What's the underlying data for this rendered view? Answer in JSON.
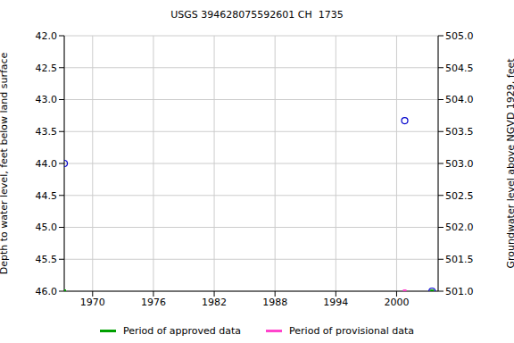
{
  "chart_data": {
    "type": "scatter",
    "title": "USGS 394628075592601 CH  1735",
    "y_label": "Depth to water level, feet below land surface",
    "y2_label": "Groundwater level above NGVD 1929, feet",
    "xlim": [
      1967.2,
      2004.1
    ],
    "xticks": [
      1970,
      1976,
      1982,
      1988,
      1994,
      2000
    ],
    "ylim": [
      46,
      42
    ],
    "yticks": [
      {
        "value": 42,
        "label": "42.0"
      },
      {
        "value": 42.5,
        "label": "42.5"
      },
      {
        "value": 43,
        "label": "43.0"
      },
      {
        "value": 43.5,
        "label": "43.5"
      },
      {
        "value": 44,
        "label": "44.0"
      },
      {
        "value": 44.5,
        "label": "44.5"
      },
      {
        "value": 45,
        "label": "45.0"
      },
      {
        "value": 45.5,
        "label": "45.5"
      },
      {
        "value": 46,
        "label": "46.0"
      }
    ],
    "y2lim": [
      501,
      505
    ],
    "y2ticks": [
      {
        "value": 501,
        "label": "501.0"
      },
      {
        "value": 501.5,
        "label": "501.5"
      },
      {
        "value": 502,
        "label": "502.0"
      },
      {
        "value": 502.5,
        "label": "502.5"
      },
      {
        "value": 503,
        "label": "503.0"
      },
      {
        "value": 503.5,
        "label": "503.5"
      },
      {
        "value": 504,
        "label": "504.0"
      },
      {
        "value": 504.5,
        "label": "504.5"
      },
      {
        "value": 505,
        "label": "505.0"
      }
    ],
    "grid": true,
    "legend": "bottom",
    "series": [
      {
        "color": "#0000cc",
        "marker": "circle-open",
        "x": [
          1967.2,
          2000.8,
          2003.5
        ],
        "values": [
          44.0,
          43.33,
          46.0
        ]
      },
      {
        "name": "Period of approved data",
        "color": "#00a000",
        "marker": "square",
        "x": [
          1967.2,
          2003.5
        ],
        "values": [
          46,
          46
        ]
      },
      {
        "name": "Period of provisional data",
        "color": "#ff44cc",
        "marker": "square",
        "x": [
          2000.8
        ],
        "values": [
          46
        ]
      }
    ]
  }
}
